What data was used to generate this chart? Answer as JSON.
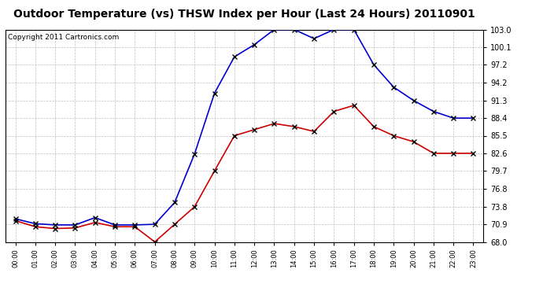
{
  "title": "Outdoor Temperature (vs) THSW Index per Hour (Last 24 Hours) 20110901",
  "copyright": "Copyright 2011 Cartronics.com",
  "hours": [
    "00:00",
    "01:00",
    "02:00",
    "03:00",
    "04:00",
    "05:00",
    "06:00",
    "07:00",
    "08:00",
    "09:00",
    "10:00",
    "11:00",
    "12:00",
    "13:00",
    "14:00",
    "15:00",
    "16:00",
    "17:00",
    "18:00",
    "19:00",
    "20:00",
    "21:00",
    "22:00",
    "23:00"
  ],
  "temp": [
    71.5,
    70.5,
    70.2,
    70.3,
    71.2,
    70.5,
    70.5,
    68.0,
    70.9,
    73.8,
    79.7,
    85.5,
    86.5,
    87.5,
    87.0,
    86.2,
    89.5,
    90.5,
    87.0,
    85.5,
    84.5,
    82.6,
    82.6,
    82.6
  ],
  "thsw": [
    71.8,
    71.0,
    70.8,
    70.8,
    72.0,
    70.8,
    70.8,
    70.9,
    74.5,
    82.5,
    92.5,
    98.5,
    100.5,
    103.0,
    103.0,
    101.5,
    103.0,
    103.0,
    97.2,
    93.5,
    91.3,
    89.5,
    88.4,
    88.4
  ],
  "ylim": [
    68.0,
    103.0
  ],
  "yticks": [
    68.0,
    70.9,
    73.8,
    76.8,
    79.7,
    82.6,
    85.5,
    88.4,
    91.3,
    94.2,
    97.2,
    100.1,
    103.0
  ],
  "temp_color": "#cc0000",
  "thsw_color": "#0000cc",
  "background_color": "#ffffff",
  "grid_color": "#b0b0b0",
  "title_fontsize": 10,
  "copyright_fontsize": 6.5,
  "tick_fontsize": 7,
  "xtick_fontsize": 6
}
